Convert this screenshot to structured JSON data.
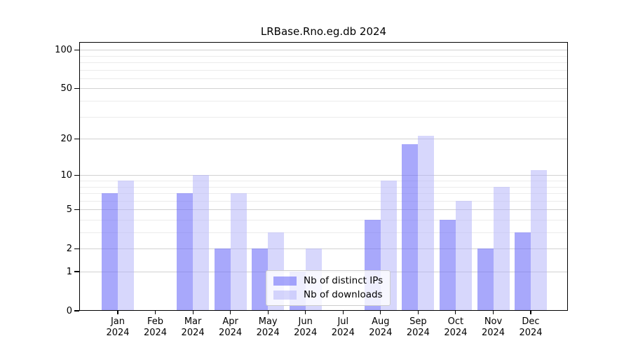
{
  "page": {
    "background": "#ffffff"
  },
  "chart_data": {
    "type": "bar",
    "title": "LRBase.Rno.eg.db 2024",
    "categories": [
      "Jan",
      "Feb",
      "Mar",
      "Apr",
      "May",
      "Jun",
      "Jul",
      "Aug",
      "Sep",
      "Oct",
      "Nov",
      "Dec"
    ],
    "x_year_label": "2024",
    "series": [
      {
        "name": "Nb of distinct IPs",
        "color": "rgba(110,110,248,0.60)",
        "solid_color": "#a8a8fa",
        "values": [
          7,
          0,
          7,
          2,
          2,
          1,
          0,
          4,
          18,
          4,
          2,
          3
        ]
      },
      {
        "name": "Nb of downloads",
        "color": "rgba(178,178,250,0.52)",
        "solid_color": "#d8d8fa",
        "values": [
          9,
          0,
          10,
          7,
          3,
          2,
          0,
          9,
          21,
          6,
          8,
          11
        ]
      }
    ],
    "yscale": "log1p",
    "ylim": [
      0,
      115
    ],
    "y_major_ticks": [
      100,
      50,
      20,
      10,
      5,
      2,
      1,
      0
    ],
    "y_minor_ticks": [
      3,
      4,
      6,
      7,
      8,
      9,
      30,
      40,
      60,
      70,
      80,
      90
    ],
    "grid": true,
    "legend_position": "lower center",
    "grid_major_color": "#d2d2d2",
    "grid_minor_color": "#ececec"
  }
}
